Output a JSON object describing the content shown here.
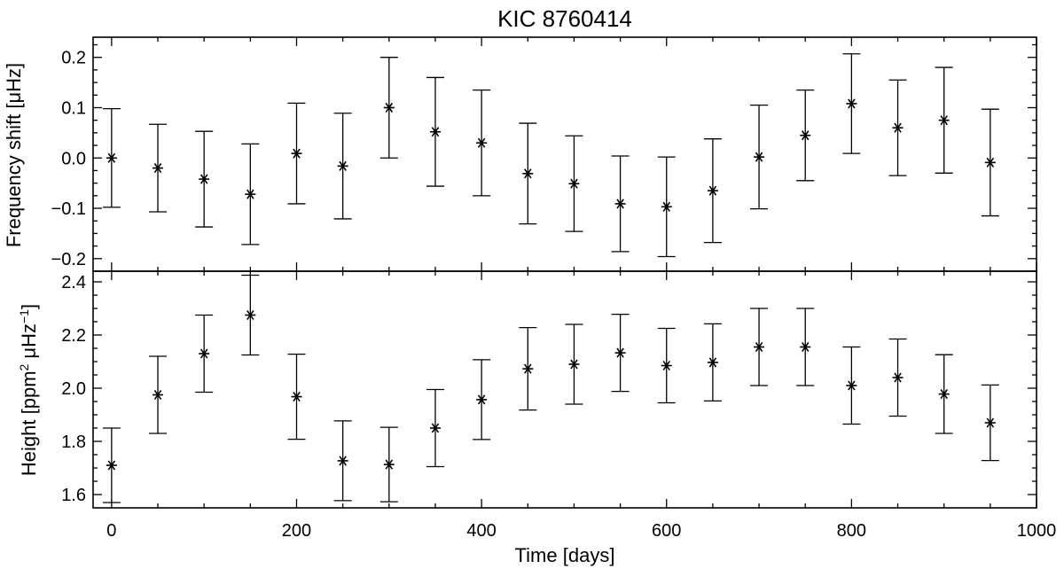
{
  "chart_data": [
    {
      "type": "scatter",
      "title": "KIC 8760414",
      "xlabel": "",
      "ylabel": "Frequency shift [μHz]",
      "xlim": [
        -20,
        1000
      ],
      "ylim": [
        -0.225,
        0.24
      ],
      "yticks": [
        -0.2,
        -0.1,
        0.0,
        0.1,
        0.2
      ],
      "ytick_labels": [
        "−0.2",
        "−0.1",
        "0.0",
        "0.1",
        "0.2"
      ],
      "marker": "asterisk",
      "error_bars": true,
      "series": [
        {
          "x": [
            0,
            50,
            100,
            150,
            200,
            250,
            300,
            350,
            400,
            450,
            500,
            550,
            600,
            650,
            700,
            750,
            800,
            850,
            900,
            950
          ],
          "y": [
            0.0,
            -0.02,
            -0.042,
            -0.072,
            0.009,
            -0.016,
            0.1,
            0.052,
            0.03,
            -0.031,
            -0.051,
            -0.091,
            -0.097,
            -0.065,
            0.002,
            0.045,
            0.108,
            0.06,
            0.075,
            -0.009
          ],
          "yerr": [
            0.098,
            0.087,
            0.095,
            0.1,
            0.1,
            0.105,
            0.1,
            0.108,
            0.105,
            0.1,
            0.095,
            0.095,
            0.099,
            0.103,
            0.103,
            0.09,
            0.099,
            0.095,
            0.105,
            0.106
          ]
        }
      ]
    },
    {
      "type": "scatter",
      "title": "",
      "xlabel": "Time [days]",
      "ylabel_parts": [
        "Height [ppm",
        "2",
        " μHz",
        "−1",
        "]"
      ],
      "xlim": [
        -20,
        1000
      ],
      "ylim": [
        1.55,
        2.44
      ],
      "xticks": [
        0,
        200,
        400,
        600,
        800,
        1000
      ],
      "xtick_labels": [
        "0",
        "200",
        "400",
        "600",
        "800",
        "1000"
      ],
      "yticks": [
        1.6,
        1.8,
        2.0,
        2.2,
        2.4
      ],
      "ytick_labels": [
        "1.6",
        "1.8",
        "2.0",
        "2.2",
        "2.4"
      ],
      "marker": "asterisk",
      "error_bars": true,
      "series": [
        {
          "x": [
            0,
            50,
            100,
            150,
            200,
            250,
            300,
            350,
            400,
            450,
            500,
            550,
            600,
            650,
            700,
            750,
            800,
            850,
            900,
            950
          ],
          "y": [
            1.71,
            1.975,
            2.13,
            2.275,
            1.968,
            1.727,
            1.713,
            1.85,
            1.957,
            2.073,
            2.09,
            2.133,
            2.085,
            2.097,
            2.155,
            2.155,
            2.01,
            2.04,
            1.978,
            1.87
          ],
          "yerr": [
            0.14,
            0.145,
            0.145,
            0.15,
            0.16,
            0.15,
            0.14,
            0.145,
            0.15,
            0.155,
            0.15,
            0.145,
            0.14,
            0.145,
            0.145,
            0.145,
            0.145,
            0.145,
            0.148,
            0.142
          ]
        }
      ]
    }
  ]
}
